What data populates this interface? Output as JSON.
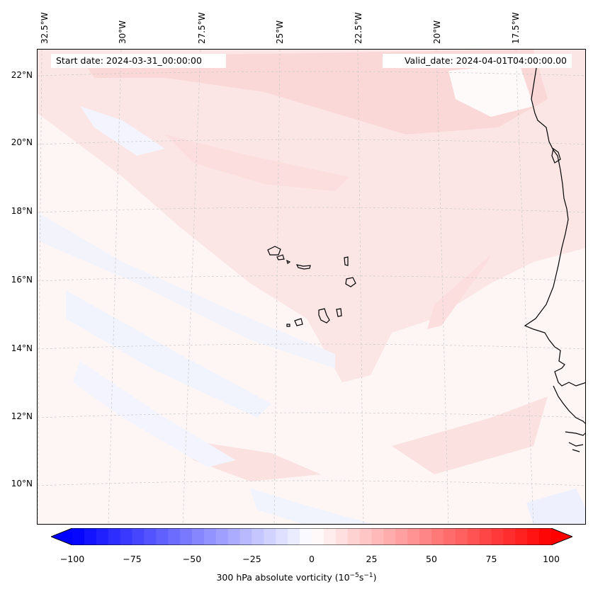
{
  "map": {
    "start_date": "Start date: 2024-03-31_00:00:00",
    "valid_date": "Valid_date: 2024-04-01T04:00:00.00",
    "longitude_labels": [
      "32.5°W",
      "30°W",
      "27.5°W",
      "25°W",
      "22.5°W",
      "20°W",
      "17.5°W"
    ],
    "latitude_labels": [
      "22°N",
      "20°N",
      "18°N",
      "16°N",
      "14°N",
      "12°N",
      "10°N"
    ],
    "colors": {
      "background": "#fdf6f5",
      "light_red": "#fde4e4",
      "medium_red": "#fbd6d6",
      "light_blue": "#f1f3fd",
      "coast": "#000000",
      "grid": "#bdbdbd"
    }
  },
  "colorbar": {
    "label_prefix": "300 hPa absolute vorticity (10",
    "label_exp1": "−5",
    "label_mid": "s",
    "label_exp2": "−1",
    "label_suffix": ")",
    "ticks": [
      "−100",
      "−75",
      "−50",
      "−25",
      "0",
      "25",
      "50",
      "75",
      "100"
    ],
    "min": -100,
    "max": 100,
    "step": 5
  }
}
